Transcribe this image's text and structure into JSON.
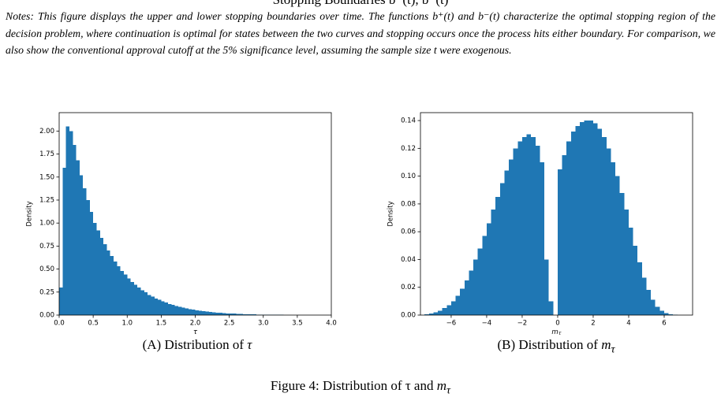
{
  "header": {
    "title": "Stopping Boundaries b⁺(t), b⁻(t)"
  },
  "notes": "Notes: This figure displays the upper and lower stopping boundaries over time. The functions b⁺(t) and b⁻(t) characterize the optimal stopping region of the decision problem, where continuation is optimal for states between the two curves and stopping occurs once the process hits either boundary. For comparison, we also show the conventional approval cutoff at the 5% significance level, assuming the sample size t were exogenous.",
  "chart_data": [
    {
      "type": "histogram",
      "xlabel": "τ",
      "ylabel": "Density",
      "color": "#1f77b4",
      "caption": {
        "label": "(A)",
        "text": "Distribution of ",
        "var": "τ"
      },
      "xlim": [
        0,
        4
      ],
      "ylim": [
        0,
        2.2
      ],
      "xticks": [
        {
          "value": 0,
          "label": "0.0"
        },
        0.5,
        {
          "value": 1,
          "label": "1.0"
        },
        1.5,
        {
          "value": 2,
          "label": "2.0"
        },
        2.5,
        {
          "value": 3,
          "label": "3.0"
        },
        3.5,
        {
          "value": 4,
          "label": "4.0"
        }
      ],
      "yticks": [
        {
          "value": 0,
          "label": "0.00"
        },
        0.25,
        {
          "value": 0.5,
          "label": "0.50"
        },
        0.75,
        {
          "value": 1,
          "label": "1.00"
        },
        1.25,
        {
          "value": 1.5,
          "label": "1.50"
        },
        1.75,
        {
          "value": 2,
          "label": "2.00"
        }
      ],
      "bins": [
        0,
        0.05,
        0.1,
        0.15,
        0.2,
        0.25,
        0.3,
        0.35,
        0.4,
        0.45,
        0.5,
        0.55,
        0.6,
        0.65,
        0.7,
        0.75,
        0.8,
        0.85,
        0.9,
        0.95,
        1,
        1.05,
        1.1,
        1.15,
        1.2,
        1.25,
        1.3,
        1.35,
        1.4,
        1.45,
        1.5,
        1.55,
        1.6,
        1.65,
        1.7,
        1.75,
        1.8,
        1.85,
        1.9,
        1.95,
        2,
        2.05,
        2.1,
        2.15,
        2.2,
        2.25,
        2.3,
        2.35,
        2.4,
        2.45,
        2.5,
        2.55,
        2.6,
        2.65,
        2.7,
        2.75,
        2.8,
        2.85,
        2.9,
        2.95,
        3,
        3.05,
        3.1,
        3.15,
        3.2,
        3.25,
        3.3,
        3.35,
        3.4,
        3.45,
        3.5,
        3.55,
        3.6,
        3.65,
        3.7,
        3.75,
        3.8,
        3.85,
        3.9,
        3.95,
        4
      ],
      "values": [
        0.3,
        1.6,
        2.05,
        2.0,
        1.85,
        1.68,
        1.52,
        1.38,
        1.25,
        1.12,
        1.0,
        0.92,
        0.84,
        0.77,
        0.7,
        0.64,
        0.58,
        0.53,
        0.48,
        0.44,
        0.4,
        0.36,
        0.33,
        0.3,
        0.27,
        0.25,
        0.22,
        0.2,
        0.18,
        0.165,
        0.15,
        0.135,
        0.12,
        0.11,
        0.1,
        0.09,
        0.08,
        0.072,
        0.065,
        0.058,
        0.052,
        0.047,
        0.042,
        0.038,
        0.034,
        0.03,
        0.027,
        0.024,
        0.021,
        0.019,
        0.017,
        0.015,
        0.013,
        0.012,
        0.01,
        0.009,
        0.008,
        0.007,
        0.006,
        0.005,
        0.005,
        0.004,
        0.004,
        0.003,
        0.003,
        0.003,
        0.002,
        0.002,
        0.002,
        0.002,
        0.001,
        0.001,
        0.001,
        0.001,
        0.001,
        0.001,
        0.001,
        0.001,
        0.001,
        0.001
      ]
    },
    {
      "type": "histogram",
      "xlabel": "m",
      "xlabel_sub": "τ",
      "ylabel": "Density",
      "color": "#1f77b4",
      "caption": {
        "label": "(B)",
        "text": "Distribution of ",
        "var": "m",
        "sub": "τ"
      },
      "xlim": [
        -7.73,
        7.6
      ],
      "ylim": [
        0,
        0.1457
      ],
      "xticks": [
        {
          "value": -6,
          "label": "−6"
        },
        {
          "value": -4,
          "label": "−4"
        },
        {
          "value": -2,
          "label": "−2"
        },
        0,
        2,
        4,
        6
      ],
      "yticks": [
        {
          "value": 0,
          "label": "0.00"
        },
        0.02,
        0.04,
        0.06,
        0.08,
        {
          "value": 0.1,
          "label": "0.10"
        },
        0.12,
        0.14
      ],
      "bins": [
        -7.5,
        -7.25,
        -7,
        -6.75,
        -6.5,
        -6.25,
        -6,
        -5.75,
        -5.5,
        -5.25,
        -5,
        -4.75,
        -4.5,
        -4.25,
        -4,
        -3.75,
        -3.5,
        -3.25,
        -3,
        -2.75,
        -2.5,
        -2.25,
        -2,
        -1.75,
        -1.5,
        -1.25,
        -1,
        -0.75,
        -0.5,
        -0.25,
        0,
        0.25,
        0.5,
        0.75,
        1,
        1.25,
        1.5,
        1.75,
        2,
        2.25,
        2.5,
        2.75,
        3,
        3.25,
        3.5,
        3.75,
        4,
        4.25,
        4.5,
        4.75,
        5,
        5.25,
        5.5,
        5.75,
        6,
        6.25,
        6.5,
        6.75,
        7
      ],
      "values": [
        0.0005,
        0.001,
        0.002,
        0.003,
        0.005,
        0.007,
        0.01,
        0.014,
        0.019,
        0.025,
        0.032,
        0.04,
        0.048,
        0.057,
        0.066,
        0.076,
        0.085,
        0.095,
        0.104,
        0.112,
        0.12,
        0.125,
        0.128,
        0.13,
        0.128,
        0.122,
        0.11,
        0.04,
        0.01,
        0,
        0.105,
        0.115,
        0.125,
        0.132,
        0.136,
        0.139,
        0.14,
        0.14,
        0.138,
        0.134,
        0.128,
        0.12,
        0.11,
        0.1,
        0.088,
        0.076,
        0.063,
        0.05,
        0.038,
        0.027,
        0.018,
        0.011,
        0.006,
        0.003,
        0.0015,
        0.0007,
        0.0003,
        0.0001
      ]
    }
  ],
  "figure_caption": {
    "text": "Figure 4: Distribution of τ and ",
    "var": "m",
    "sub": "τ"
  }
}
